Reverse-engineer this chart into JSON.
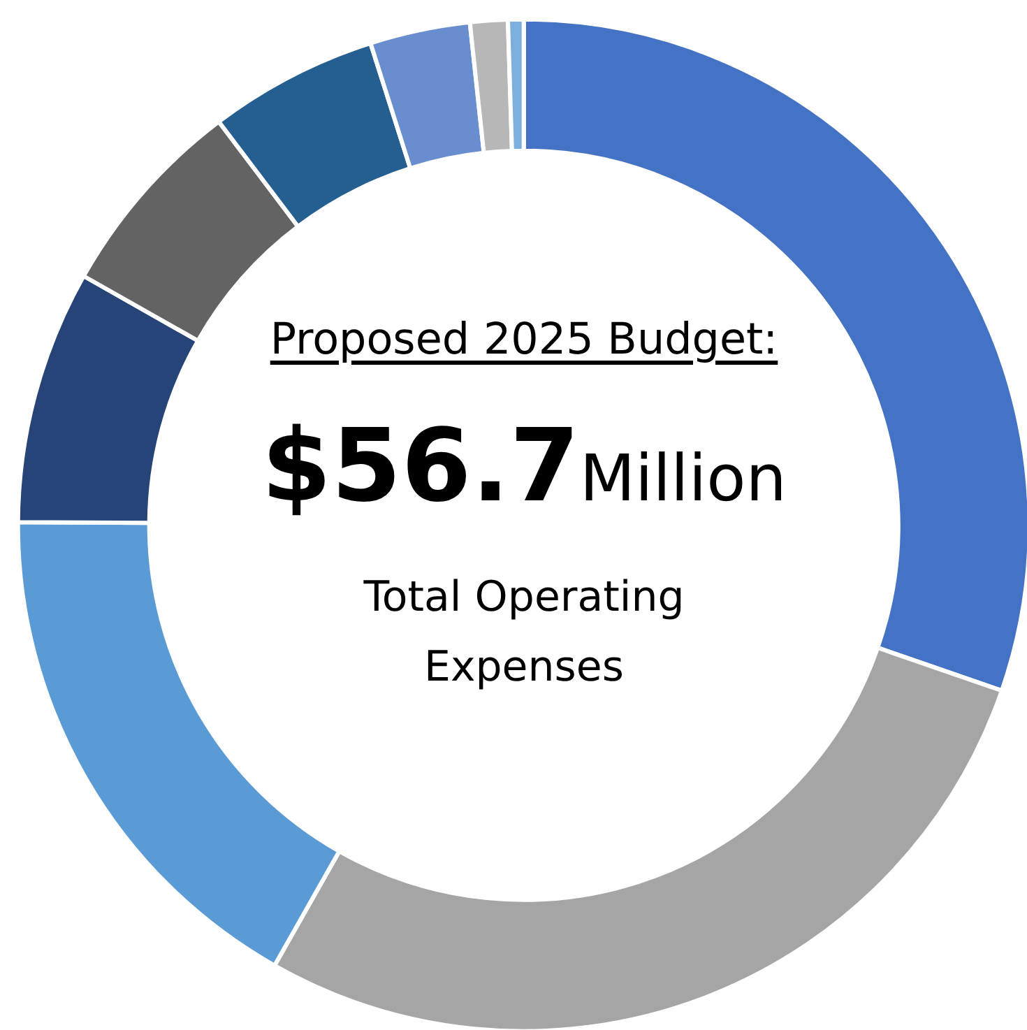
{
  "chart_data": {
    "type": "donut",
    "title": "Proposed 2025 Budget:",
    "annotations": [
      "$56.7",
      "Million",
      "Total Operating Expenses"
    ],
    "categories": [
      null,
      null,
      null,
      null,
      null,
      null,
      null,
      null,
      null
    ],
    "values": [
      30.3,
      27.9,
      16.9,
      8.1,
      6.5,
      5.4,
      3.2,
      1.2,
      0.5
    ],
    "colors": [
      "#4472c4",
      "#a5a5a5",
      "#5b9bd5",
      "#264478",
      "#636363",
      "#255e91",
      "#698ed0",
      "#b7b7b7",
      "#7cafdd"
    ]
  }
}
